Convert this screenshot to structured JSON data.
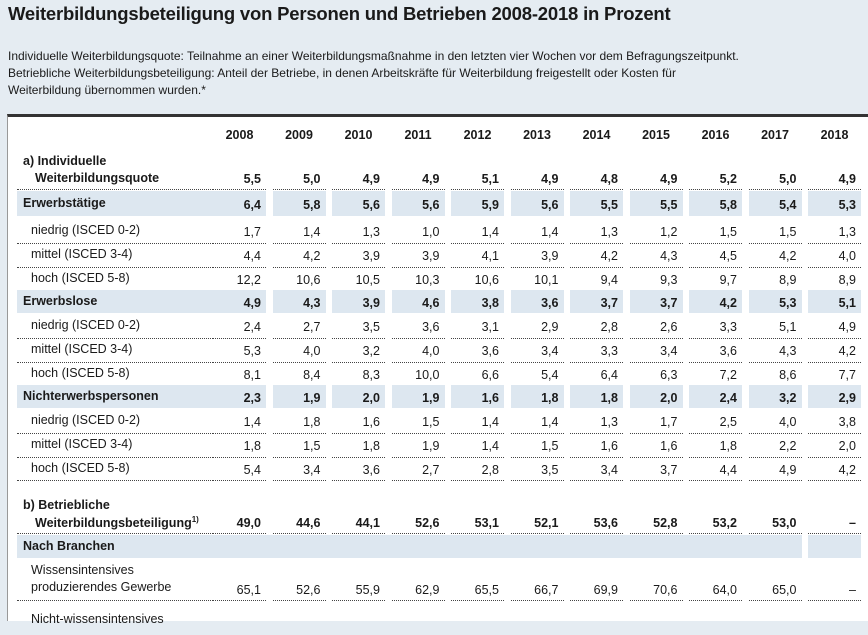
{
  "header": {
    "title": "Weiterbildungsbeteiligung von Personen und Betrieben 2008-2018 in Prozent",
    "description": [
      "Individuelle Weiterbildungsquote: Teilnahme an einer Weiterbildungsmaßnahme in den letzten vier Wochen vor dem Befragungszeitpunkt.",
      "Betriebliche Weiterbildungsbeteiligung: Anteil der Betriebe, in denen Arbeitskräfte für Weiterbildung freigestellt oder Kosten für",
      "Weiterbildung übernommen wurden.*"
    ]
  },
  "table": {
    "columns": [
      "2008",
      "2009",
      "2010",
      "2011",
      "2012",
      "2013",
      "2014",
      "2015",
      "2016",
      "2017",
      "2018"
    ],
    "rows": [
      {
        "label": [
          "a) Individuelle",
          "Weiterbildungsquote"
        ],
        "bold": true,
        "values": [
          "5,5",
          "5,0",
          "4,9",
          "4,9",
          "5,1",
          "4,9",
          "4,8",
          "4,9",
          "5,2",
          "5,0",
          "4,9"
        ]
      },
      {
        "label": [
          "Erwerbstätige"
        ],
        "bold": true,
        "shaded": true,
        "values": [
          "6,4",
          "5,8",
          "5,6",
          "5,6",
          "5,9",
          "5,6",
          "5,5",
          "5,5",
          "5,8",
          "5,4",
          "5,3"
        ]
      },
      {
        "label": [
          "niedrig (ISCED 0-2)"
        ],
        "indent": true,
        "values": [
          "1,7",
          "1,4",
          "1,3",
          "1,0",
          "1,4",
          "1,4",
          "1,3",
          "1,2",
          "1,5",
          "1,5",
          "1,3"
        ]
      },
      {
        "label": [
          "mittel (ISCED 3-4)"
        ],
        "indent": true,
        "values": [
          "4,4",
          "4,2",
          "3,9",
          "3,9",
          "4,1",
          "3,9",
          "4,2",
          "4,3",
          "4,5",
          "4,2",
          "4,0"
        ]
      },
      {
        "label": [
          "hoch (ISCED 5-8)"
        ],
        "indent": true,
        "values": [
          "12,2",
          "10,6",
          "10,5",
          "10,3",
          "10,6",
          "10,1",
          "9,4",
          "9,3",
          "9,7",
          "8,9",
          "8,9"
        ]
      },
      {
        "label": [
          "Erwerbslose"
        ],
        "bold": true,
        "shaded": true,
        "values": [
          "4,9",
          "4,3",
          "3,9",
          "4,6",
          "3,8",
          "3,6",
          "3,7",
          "3,7",
          "4,2",
          "5,3",
          "5,1"
        ]
      },
      {
        "label": [
          "niedrig (ISCED 0-2)"
        ],
        "indent": true,
        "values": [
          "2,4",
          "2,7",
          "3,5",
          "3,6",
          "3,1",
          "2,9",
          "2,8",
          "2,6",
          "3,3",
          "5,1",
          "4,9"
        ]
      },
      {
        "label": [
          "mittel (ISCED 3-4)"
        ],
        "indent": true,
        "values": [
          "5,3",
          "4,0",
          "3,2",
          "4,0",
          "3,6",
          "3,4",
          "3,3",
          "3,4",
          "3,6",
          "4,3",
          "4,2"
        ]
      },
      {
        "label": [
          "hoch (ISCED 5-8)"
        ],
        "indent": true,
        "values": [
          "8,1",
          "8,4",
          "8,3",
          "10,0",
          "6,6",
          "5,4",
          "6,4",
          "6,3",
          "7,2",
          "8,6",
          "7,7"
        ]
      },
      {
        "label": [
          "Nichterwerbspersonen"
        ],
        "bold": true,
        "shaded": true,
        "values": [
          "2,3",
          "1,9",
          "2,0",
          "1,9",
          "1,6",
          "1,8",
          "1,8",
          "2,0",
          "2,4",
          "3,2",
          "2,9"
        ]
      },
      {
        "label": [
          "niedrig (ISCED 0-2)"
        ],
        "indent": true,
        "values": [
          "1,4",
          "1,8",
          "1,6",
          "1,5",
          "1,4",
          "1,4",
          "1,3",
          "1,7",
          "2,5",
          "4,0",
          "3,8"
        ]
      },
      {
        "label": [
          "mittel (ISCED 3-4)"
        ],
        "indent": true,
        "values": [
          "1,8",
          "1,5",
          "1,8",
          "1,9",
          "1,4",
          "1,5",
          "1,6",
          "1,6",
          "1,8",
          "2,2",
          "2,0"
        ]
      },
      {
        "label": [
          "hoch (ISCED 5-8)"
        ],
        "indent": true,
        "values": [
          "5,4",
          "3,4",
          "3,6",
          "2,7",
          "2,8",
          "3,5",
          "3,4",
          "3,7",
          "4,4",
          "4,9",
          "4,2"
        ]
      },
      {
        "label": [
          "b) Betriebliche",
          "Weiterbildungsbeteiligung"
        ],
        "label_sup": "1)",
        "bold": true,
        "values": [
          "49,0",
          "44,6",
          "44,1",
          "52,6",
          "53,1",
          "52,1",
          "53,6",
          "52,8",
          "53,2",
          "53,0",
          "–"
        ]
      },
      {
        "label": [
          "Nach Branchen"
        ],
        "bold": true,
        "shaded": true,
        "span": true
      },
      {
        "label": [
          "Wissensintensives",
          "produzierendes Gewerbe"
        ],
        "indent": true,
        "values": [
          "65,1",
          "52,6",
          "55,9",
          "62,9",
          "65,5",
          "66,7",
          "69,9",
          "70,6",
          "64,0",
          "65,0",
          "–"
        ]
      },
      {
        "label": [
          "Nicht-wissensintensives"
        ],
        "indent": true
      }
    ]
  }
}
